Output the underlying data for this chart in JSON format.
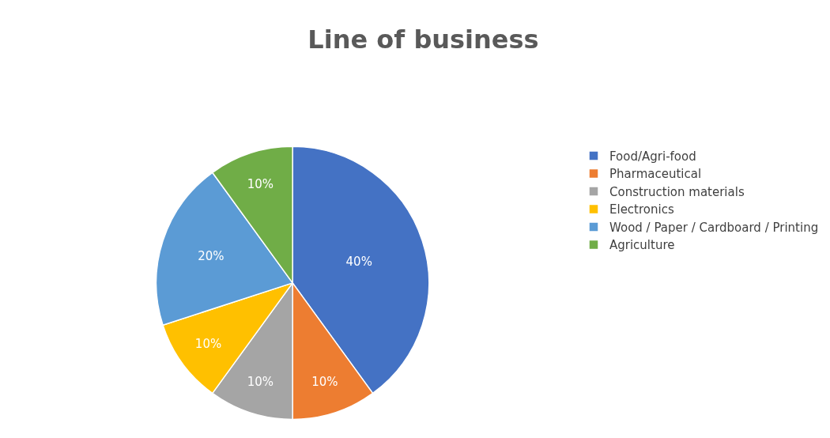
{
  "chart_data": {
    "type": "pie",
    "title": "Line of business",
    "categories": [
      "Food/Agri-food",
      "Pharmaceutical",
      "Construction materials",
      "Electronics",
      "Wood / Paper / Cardboard / Printing",
      "Agriculture"
    ],
    "values": [
      40,
      10,
      10,
      10,
      20,
      10
    ],
    "value_labels": [
      "40%",
      "10%",
      "10%",
      "10%",
      "20%",
      "10%"
    ],
    "colors": [
      "#4472c4",
      "#ed7d31",
      "#a5a5a5",
      "#ffc000",
      "#5b9bd5",
      "#70ad47"
    ],
    "legend": "right"
  }
}
